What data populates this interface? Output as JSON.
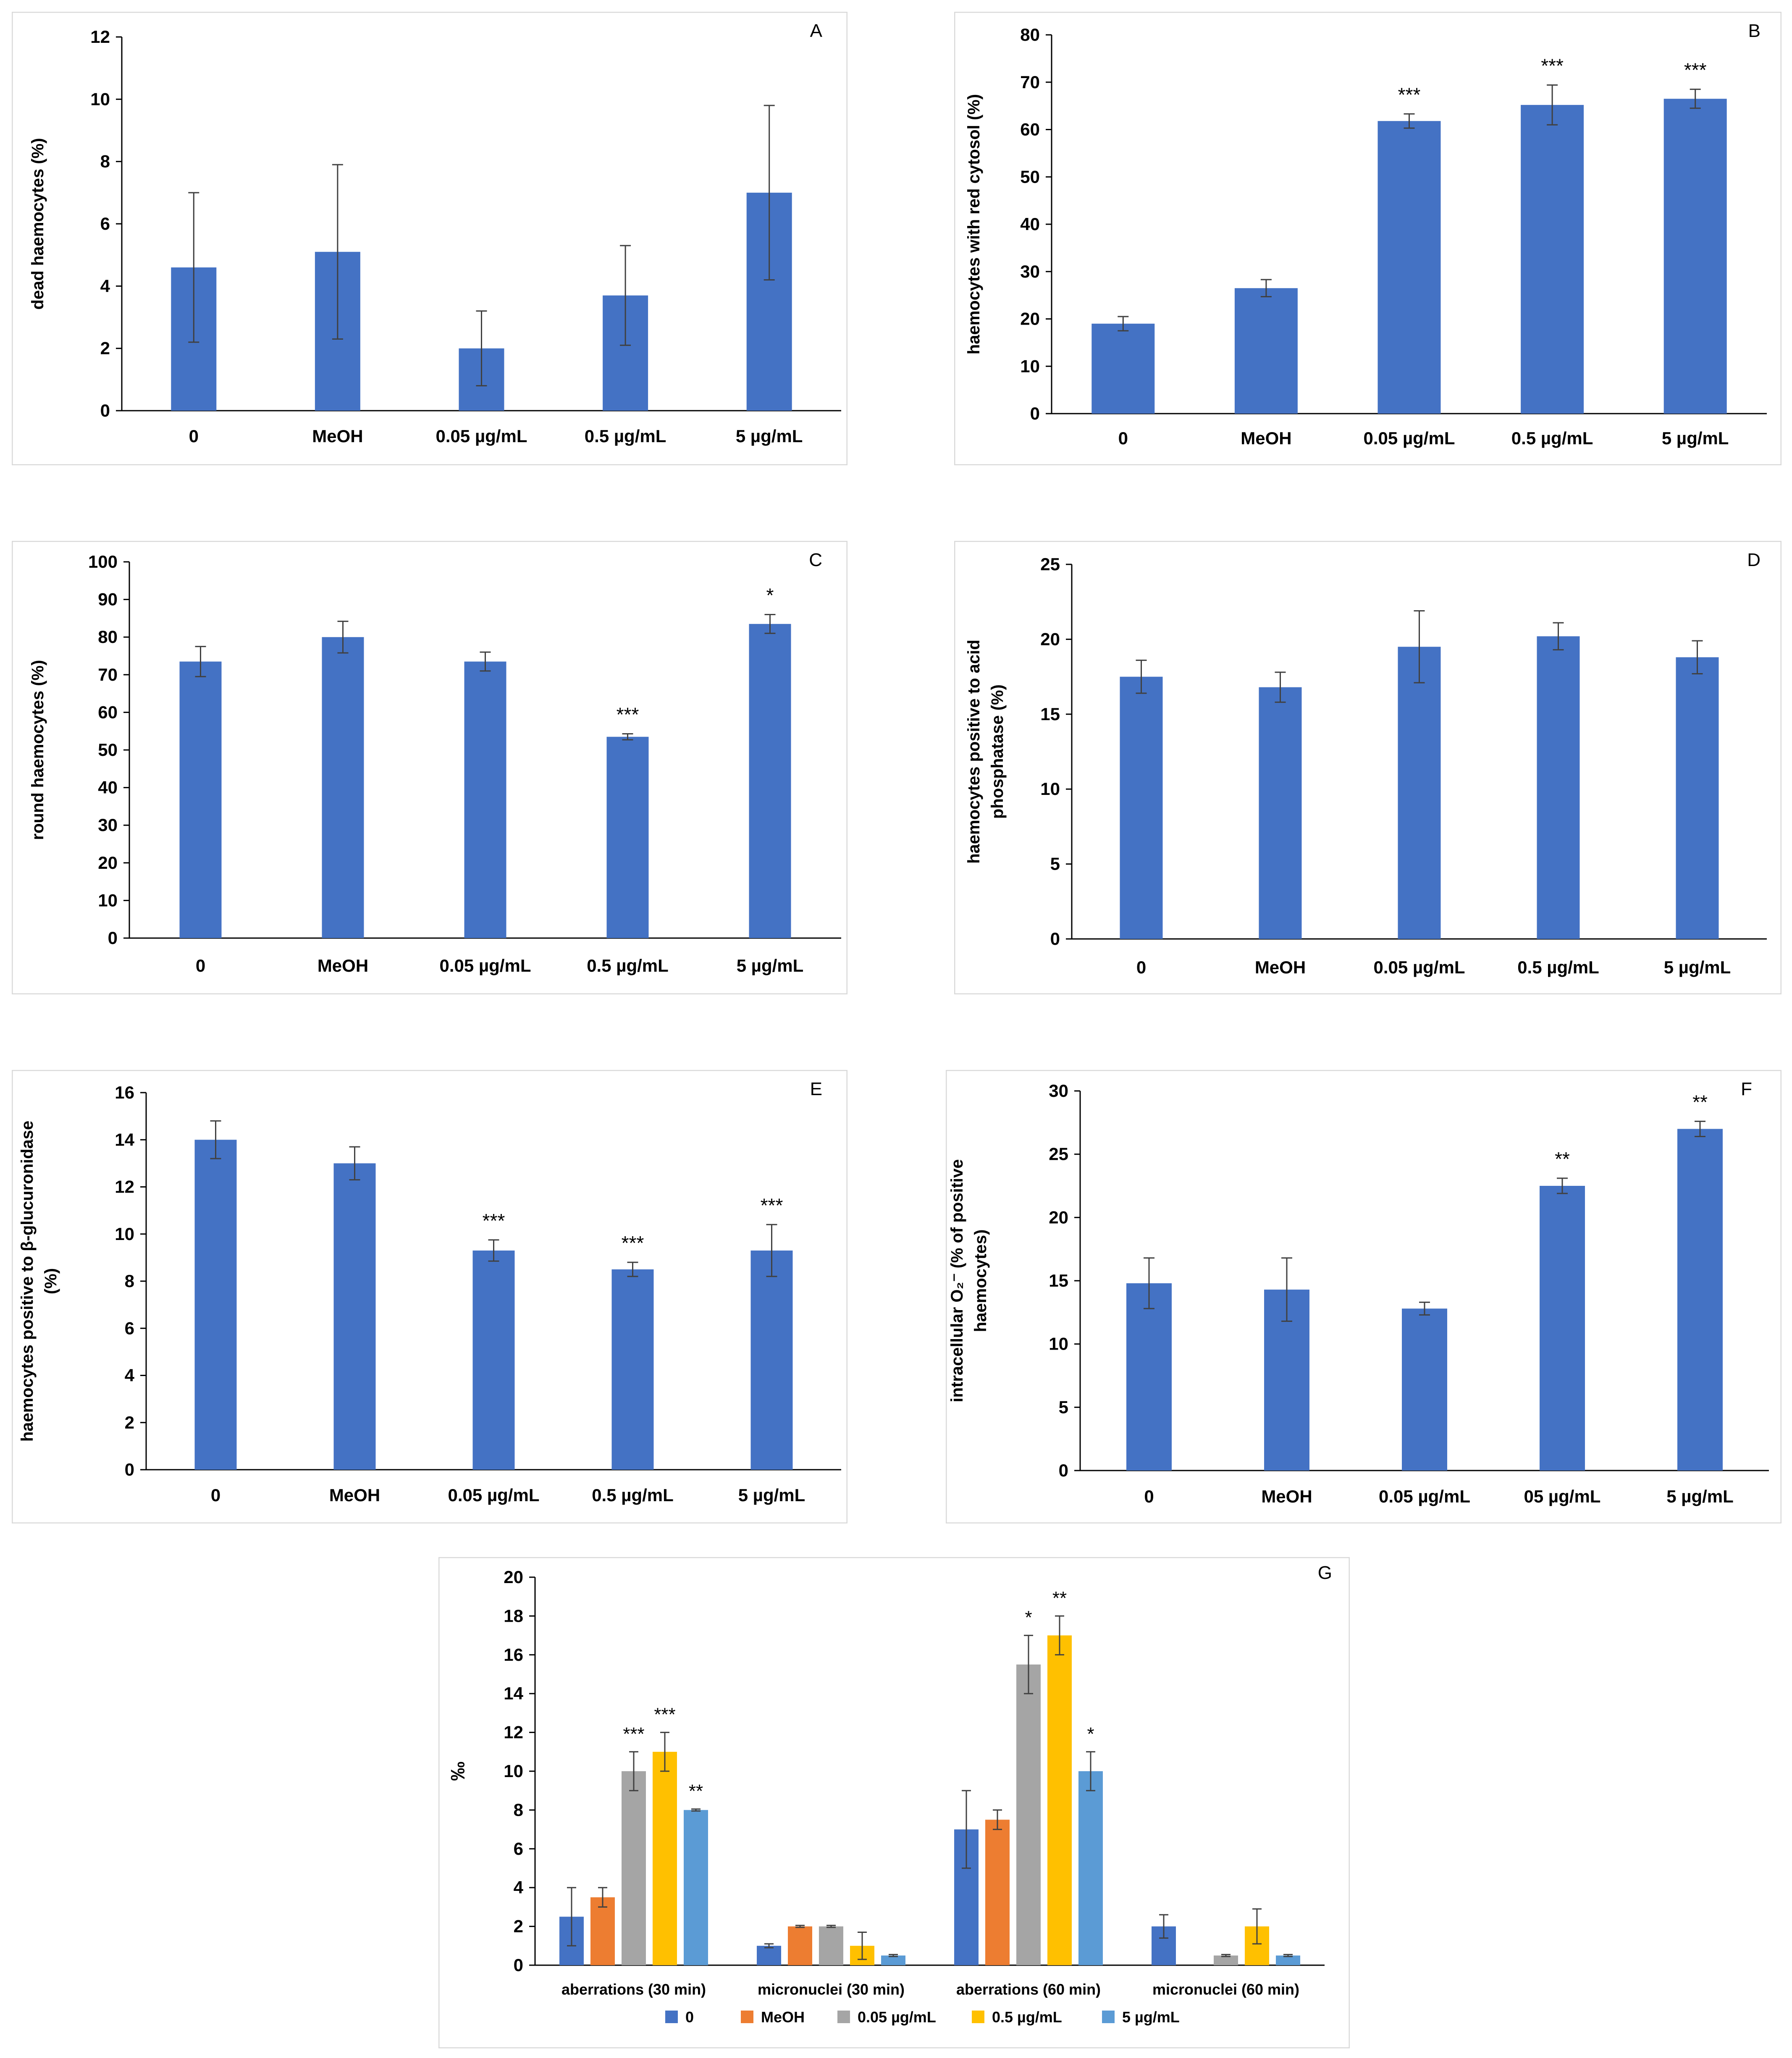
{
  "colors": {
    "bar_blue": "#4472C4",
    "orange": "#ED7D31",
    "gray": "#A5A5A5",
    "gold": "#FFC000",
    "light_blue": "#5B9BD5",
    "frame": "#D9D9D9",
    "axis": "#000000",
    "error": "#404040"
  },
  "chart_data": [
    {
      "type": "bar",
      "panel": "A",
      "categories": [
        "0",
        "MeOH",
        "0.05  µg/mL",
        "0.5  µg/mL",
        "5 µg/mL"
      ],
      "values": [
        4.6,
        5.1,
        2.0,
        3.7,
        7.0
      ],
      "errors": [
        2.4,
        2.8,
        1.2,
        1.6,
        2.8
      ],
      "significance": [
        "",
        "",
        "",
        "",
        ""
      ],
      "ylabel": "dead haemocytes (%)",
      "ylim": [
        0,
        12
      ],
      "yticks": [
        0,
        2,
        4,
        6,
        8,
        10,
        12
      ],
      "grid": false,
      "legend": "none"
    },
    {
      "type": "bar",
      "panel": "B",
      "categories": [
        "0",
        "MeOH",
        "0.05  µg/mL",
        "0.5  µg/mL",
        "5 µg/mL"
      ],
      "values": [
        19,
        26.5,
        61.8,
        65.2,
        66.5
      ],
      "errors": [
        1.5,
        1.8,
        1.5,
        4.2,
        2.0
      ],
      "significance": [
        "",
        "",
        "***",
        "***",
        "***"
      ],
      "ylabel": "haemocytes with red cytosol (%)",
      "ylim": [
        0,
        80
      ],
      "yticks": [
        0,
        10,
        20,
        30,
        40,
        50,
        60,
        70,
        80
      ],
      "grid": false,
      "legend": "none"
    },
    {
      "type": "bar",
      "panel": "C",
      "categories": [
        "0",
        "MeOH",
        "0.05  µg/mL",
        "0.5  µg/mL",
        "5 µg/mL"
      ],
      "values": [
        73.5,
        80,
        73.5,
        53.5,
        83.5
      ],
      "errors": [
        4.0,
        4.2,
        2.5,
        0.8,
        2.5
      ],
      "significance": [
        "",
        "",
        "",
        "***",
        "*"
      ],
      "ylabel": "round haemocytes (%)",
      "ylim": [
        0,
        100
      ],
      "yticks": [
        0,
        10,
        20,
        30,
        40,
        50,
        60,
        70,
        80,
        90,
        100
      ],
      "grid": false,
      "legend": "none"
    },
    {
      "type": "bar",
      "panel": "D",
      "categories": [
        "0",
        "MeOH",
        "0.05  µg/mL",
        "0.5  µg/mL",
        "5 µg/mL"
      ],
      "values": [
        17.5,
        16.8,
        19.5,
        20.2,
        18.8
      ],
      "errors": [
        1.1,
        1.0,
        2.4,
        0.9,
        1.1
      ],
      "significance": [
        "",
        "",
        "",
        "",
        ""
      ],
      "ylabel_lines": [
        "haemocytes positive to acid",
        "phosphatase  (%)"
      ],
      "ylim": [
        0,
        25
      ],
      "yticks": [
        0,
        5,
        10,
        15,
        20,
        25
      ],
      "grid": false,
      "legend": "none"
    },
    {
      "type": "bar",
      "panel": "E",
      "categories": [
        "0",
        "MeOH",
        "0.05 µg/mL",
        "0.5  µg/mL",
        "5  µg/mL"
      ],
      "values": [
        14,
        13,
        9.3,
        8.5,
        9.3
      ],
      "errors": [
        0.8,
        0.7,
        0.45,
        0.3,
        1.1
      ],
      "significance": [
        "",
        "",
        "***",
        "***",
        "***"
      ],
      "ylabel_lines": [
        "haemocytes positive to β-glucuronidase",
        "(%)"
      ],
      "ylim": [
        0,
        16
      ],
      "yticks": [
        0,
        2,
        4,
        6,
        8,
        10,
        12,
        14,
        16
      ],
      "grid": false,
      "legend": "none"
    },
    {
      "type": "bar",
      "panel": "F",
      "categories": [
        "0",
        "MeOH",
        "0.05  µg/mL",
        "05  µg/mL",
        "5 µg/mL"
      ],
      "values": [
        14.8,
        14.3,
        12.8,
        22.5,
        27.0
      ],
      "errors": [
        2.0,
        2.5,
        0.5,
        0.6,
        0.6
      ],
      "significance": [
        "",
        "",
        "",
        "**",
        "**"
      ],
      "ylabel_lines": [
        "intracellular O₂⁻ (% of positive",
        "haemocytes)"
      ],
      "ylim": [
        0,
        30
      ],
      "yticks": [
        0,
        5,
        10,
        15,
        20,
        25,
        30
      ],
      "grid": false,
      "legend": "none"
    },
    {
      "type": "bar",
      "panel": "G",
      "categories": [
        "aberrations (30 min)",
        "micronuclei (30 min)",
        "aberrations (60 min)",
        "micronuclei (60 min)"
      ],
      "series": [
        {
          "name": "0",
          "values": [
            2.5,
            1.0,
            7.0,
            2.0
          ],
          "errors": [
            1.5,
            0.1,
            2.0,
            0.6
          ],
          "significance": [
            "",
            "",
            "",
            ""
          ]
        },
        {
          "name": "MeOH",
          "values": [
            3.5,
            2.0,
            7.5,
            0
          ],
          "errors": [
            0.5,
            0.05,
            0.5,
            0
          ],
          "significance": [
            "",
            "",
            "",
            ""
          ]
        },
        {
          "name": "0.05 µg/mL",
          "values": [
            10,
            2.0,
            15.5,
            0.5
          ],
          "errors": [
            1.0,
            0.05,
            1.5,
            0.05
          ],
          "significance": [
            "***",
            "",
            "*",
            ""
          ]
        },
        {
          "name": "0.5 µg/mL",
          "values": [
            11,
            1.0,
            17,
            2.0
          ],
          "errors": [
            1.0,
            0.7,
            1.0,
            0.9
          ],
          "significance": [
            "***",
            "",
            "**",
            ""
          ]
        },
        {
          "name": "5 µg/mL",
          "values": [
            8.0,
            0.5,
            10,
            0.5
          ],
          "errors": [
            0.05,
            0.05,
            1.0,
            0.05
          ],
          "significance": [
            "**",
            "",
            "*",
            ""
          ]
        }
      ],
      "ylabel": "‰",
      "ylim": [
        0,
        20
      ],
      "yticks": [
        0,
        2,
        4,
        6,
        8,
        10,
        12,
        14,
        16,
        18,
        20
      ],
      "grid": false,
      "legend": "bottom"
    }
  ]
}
